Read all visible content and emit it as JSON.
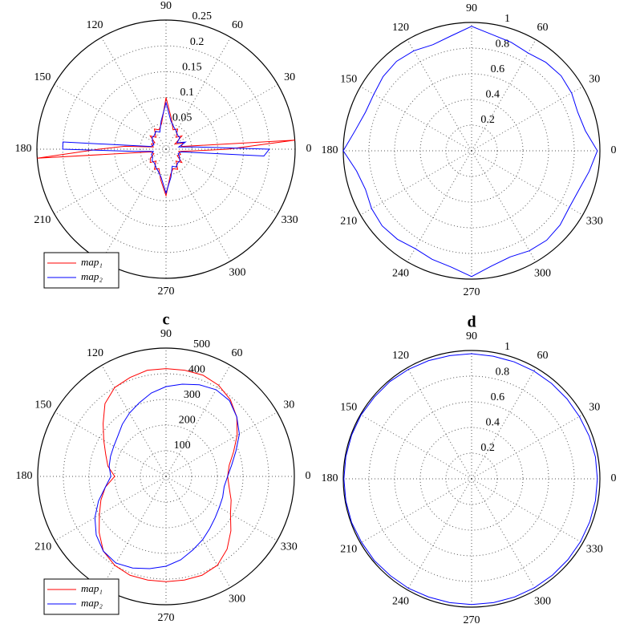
{
  "chart_data": [
    {
      "type": "polar",
      "grid": true,
      "legend": "lower left",
      "ylim": [
        0,
        0.25
      ],
      "yticks": [
        0.05,
        0.1,
        0.15,
        0.2,
        0.25
      ],
      "xticks": [
        0,
        30,
        60,
        90,
        120,
        150,
        180,
        210,
        270,
        300,
        330
      ],
      "x": [
        0,
        4,
        10,
        20,
        30,
        40,
        50,
        60,
        70,
        80,
        90,
        100,
        110,
        120,
        130,
        140,
        150,
        160,
        170,
        176,
        180,
        184,
        190,
        200,
        210,
        220,
        230,
        240,
        250,
        260,
        270,
        280,
        290,
        300,
        310,
        320,
        330,
        340,
        350,
        356
      ],
      "series": [
        {
          "name": "map₁",
          "color": "#ff0000",
          "values": [
            0.12,
            0.25,
            0.03,
            0.035,
            0.02,
            0.04,
            0.03,
            0.045,
            0.04,
            0.06,
            0.1,
            0.05,
            0.04,
            0.045,
            0.03,
            0.04,
            0.025,
            0.03,
            0.025,
            0.08,
            0.13,
            0.25,
            0.03,
            0.025,
            0.035,
            0.04,
            0.03,
            0.045,
            0.04,
            0.06,
            0.09,
            0.05,
            0.04,
            0.045,
            0.03,
            0.04,
            0.025,
            0.03,
            0.025,
            0.05
          ]
        },
        {
          "name": "map₂",
          "color": "#0000ff",
          "values": [
            0.2,
            0.06,
            0.025,
            0.04,
            0.025,
            0.035,
            0.035,
            0.04,
            0.045,
            0.055,
            0.09,
            0.055,
            0.035,
            0.04,
            0.035,
            0.035,
            0.03,
            0.025,
            0.03,
            0.2,
            0.2,
            0.06,
            0.025,
            0.03,
            0.03,
            0.035,
            0.035,
            0.04,
            0.045,
            0.055,
            0.085,
            0.055,
            0.035,
            0.04,
            0.035,
            0.035,
            0.03,
            0.025,
            0.03,
            0.19
          ]
        }
      ]
    },
    {
      "type": "polar",
      "grid": true,
      "ylim": [
        0,
        1
      ],
      "yticks": [
        0.2,
        0.4,
        0.6,
        0.8,
        1
      ],
      "xticks": [
        0,
        30,
        60,
        90,
        120,
        150,
        180,
        210,
        240,
        270,
        300,
        330
      ],
      "x": [
        0,
        10,
        20,
        30,
        40,
        50,
        60,
        70,
        80,
        90,
        100,
        110,
        120,
        130,
        140,
        150,
        160,
        170,
        180,
        190,
        200,
        210,
        220,
        230,
        240,
        250,
        260,
        270,
        280,
        290,
        300,
        310,
        320,
        330,
        340,
        350
      ],
      "series": [
        {
          "name": "map₂",
          "color": "#0000ff",
          "values": [
            0.98,
            0.9,
            0.88,
            0.9,
            0.91,
            0.9,
            0.88,
            0.9,
            0.92,
            0.97,
            0.91,
            0.88,
            0.9,
            0.91,
            0.9,
            0.88,
            0.88,
            0.92,
            1.0,
            0.91,
            0.88,
            0.9,
            0.91,
            0.9,
            0.88,
            0.9,
            0.92,
            0.98,
            0.91,
            0.88,
            0.9,
            0.91,
            0.9,
            0.88,
            0.89,
            0.93
          ]
        }
      ]
    },
    {
      "type": "polar",
      "title": "c",
      "grid": true,
      "legend": "lower left",
      "ylim": [
        0,
        500
      ],
      "yticks": [
        100,
        200,
        300,
        400,
        500
      ],
      "xticks": [
        0,
        30,
        60,
        90,
        120,
        150,
        180,
        210,
        270,
        300,
        330
      ],
      "x": [
        0,
        10,
        20,
        30,
        40,
        50,
        60,
        70,
        80,
        90,
        100,
        110,
        120,
        130,
        140,
        150,
        160,
        170,
        180,
        190,
        200,
        210,
        220,
        230,
        240,
        250,
        260,
        270,
        280,
        290,
        300,
        310,
        320,
        330,
        340,
        350
      ],
      "series": [
        {
          "name": "map₁",
          "color": "#ff0000",
          "values": [
            240,
            250,
            280,
            320,
            360,
            390,
            410,
            420,
            420,
            420,
            420,
            410,
            400,
            370,
            320,
            280,
            250,
            230,
            200,
            240,
            270,
            300,
            340,
            380,
            400,
            410,
            410,
            410,
            410,
            410,
            400,
            370,
            330,
            290,
            270,
            250
          ]
        },
        {
          "name": "map₂",
          "color": "#0000ff",
          "values": [
            240,
            260,
            290,
            330,
            360,
            385,
            390,
            380,
            365,
            350,
            330,
            305,
            285,
            265,
            245,
            235,
            230,
            225,
            215,
            240,
            280,
            320,
            355,
            380,
            390,
            380,
            365,
            350,
            330,
            305,
            285,
            265,
            250,
            240,
            235,
            230
          ]
        }
      ]
    },
    {
      "type": "polar",
      "title": "d",
      "grid": true,
      "ylim": [
        0,
        1
      ],
      "yticks": [
        0.2,
        0.4,
        0.6,
        0.8,
        1
      ],
      "xticks": [
        0,
        30,
        60,
        90,
        120,
        150,
        180,
        210,
        240,
        270,
        300,
        330
      ],
      "x": [
        0,
        10,
        20,
        30,
        40,
        50,
        60,
        70,
        80,
        90,
        100,
        110,
        120,
        130,
        140,
        150,
        160,
        170,
        180,
        190,
        200,
        210,
        220,
        230,
        240,
        250,
        260,
        270,
        280,
        290,
        300,
        310,
        320,
        330,
        340,
        350
      ],
      "series": [
        {
          "name": "map₂",
          "color": "#0000ff",
          "values": [
            0.98,
            0.98,
            0.975,
            0.97,
            0.97,
            0.97,
            0.97,
            0.97,
            0.97,
            0.975,
            0.975,
            0.98,
            0.985,
            0.99,
            0.99,
            0.995,
            0.995,
            0.995,
            0.995,
            0.995,
            0.995,
            0.99,
            0.99,
            0.985,
            0.985,
            0.98,
            0.98,
            0.98,
            0.98,
            0.98,
            0.98,
            0.98,
            0.98,
            0.98,
            0.98,
            0.98
          ]
        }
      ]
    }
  ]
}
